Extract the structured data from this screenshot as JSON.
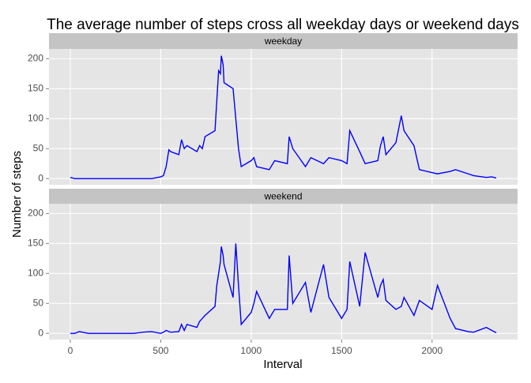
{
  "chart_data": {
    "type": "line",
    "facets": true,
    "title": "The average number of steps cross all weekday days or weekend days",
    "xlabel": "Interval",
    "ylabel": "Number of steps",
    "x": [
      0,
      25,
      50,
      100,
      150,
      200,
      250,
      300,
      350,
      400,
      450,
      500,
      515,
      530,
      545,
      555,
      600,
      615,
      630,
      645,
      700,
      715,
      730,
      745,
      800,
      810,
      820,
      830,
      835,
      845,
      850,
      900,
      915,
      930,
      945,
      1000,
      1015,
      1030,
      1100,
      1130,
      1200,
      1210,
      1230,
      1300,
      1330,
      1400,
      1430,
      1500,
      1530,
      1545,
      1600,
      1630,
      1700,
      1715,
      1730,
      1745,
      1800,
      1830,
      1845,
      1900,
      1930,
      2000,
      2030,
      2100,
      2130,
      2200,
      2230,
      2300,
      2330,
      2355
    ],
    "series": [
      {
        "name": "weekday",
        "color": "#0000ff",
        "values": [
          2,
          0,
          0,
          0,
          0,
          0,
          0,
          0,
          0,
          0,
          0,
          3,
          5,
          20,
          48,
          45,
          40,
          65,
          50,
          55,
          45,
          55,
          50,
          70,
          80,
          130,
          180,
          175,
          205,
          190,
          160,
          150,
          100,
          50,
          20,
          30,
          35,
          20,
          15,
          30,
          25,
          70,
          50,
          20,
          35,
          25,
          35,
          30,
          25,
          80,
          45,
          25,
          30,
          55,
          70,
          40,
          60,
          105,
          80,
          55,
          15,
          10,
          8,
          12,
          15,
          8,
          5,
          2,
          3,
          1
        ]
      },
      {
        "name": "weekend",
        "color": "#0000ff",
        "values": [
          0,
          0,
          3,
          0,
          0,
          0,
          0,
          0,
          0,
          2,
          3,
          0,
          2,
          5,
          3,
          2,
          3,
          15,
          5,
          15,
          10,
          20,
          25,
          30,
          45,
          80,
          100,
          120,
          145,
          130,
          115,
          60,
          150,
          80,
          15,
          35,
          50,
          70,
          25,
          40,
          40,
          130,
          50,
          85,
          35,
          115,
          60,
          25,
          40,
          120,
          45,
          135,
          60,
          80,
          90,
          55,
          40,
          45,
          60,
          30,
          55,
          40,
          80,
          25,
          8,
          3,
          2,
          10,
          5,
          1
        ]
      }
    ],
    "xlim": [
      -117.75,
      2472.75
    ],
    "xticks": [
      0,
      500,
      1000,
      1500,
      2000
    ],
    "ylim": [
      -10.3,
      216.3
    ],
    "yticks": [
      0,
      50,
      100,
      150,
      200
    ],
    "grid": true
  }
}
